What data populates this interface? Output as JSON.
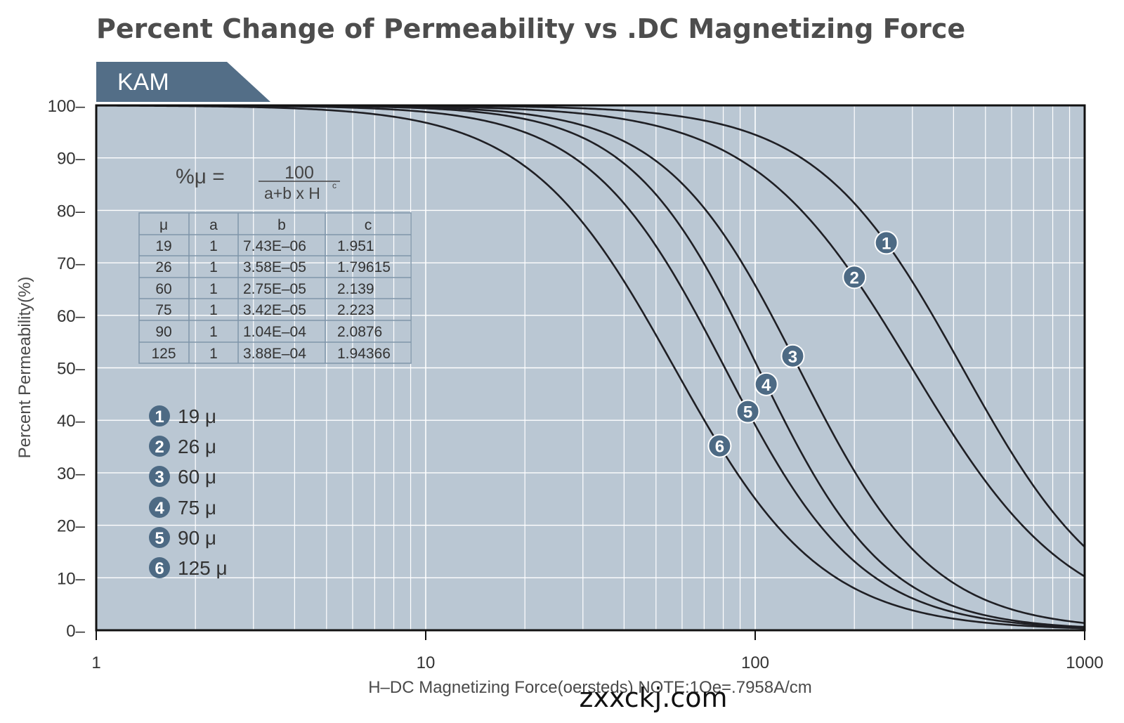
{
  "chart_data": {
    "type": "line",
    "title": "Percent Change of Permeability vs .DC Magnetizing Force",
    "tag": "KAM",
    "xlabel": "H–DC Magnetizing Force(oersteds) NOTE:1Oe=.7958A/cm",
    "ylabel": "Percent Permeability(%)",
    "xscale": "log",
    "xlim": [
      1,
      1000
    ],
    "ylim": [
      0,
      100
    ],
    "xticks": [
      "1",
      "10",
      "100",
      "1000"
    ],
    "yticks": [
      "100–",
      "90–",
      "80–",
      "70–",
      "60–",
      "50–",
      "40–",
      "30–",
      "20–",
      "10–",
      "0–"
    ],
    "formula": {
      "lhs": "%μ =",
      "numerator": "100",
      "denominator": "a+b x H",
      "exponent": "c"
    },
    "table": {
      "headers": [
        "μ",
        "a",
        "b",
        "c"
      ],
      "rows": [
        [
          "19",
          "1",
          "7.43E–06",
          "1.951"
        ],
        [
          "26",
          "1",
          "3.58E–05",
          "1.79615"
        ],
        [
          "60",
          "1",
          "2.75E–05",
          "2.139"
        ],
        [
          "75",
          "1",
          "3.42E–05",
          "2.223"
        ],
        [
          "90",
          "1",
          "1.04E–04",
          "2.0876"
        ],
        [
          "125",
          "1",
          "3.88E–04",
          "1.94366"
        ]
      ]
    },
    "series": [
      {
        "id": "1",
        "name": "19 μ",
        "a": 1,
        "b": 7.43e-06,
        "c": 1.951,
        "marker_x": 250
      },
      {
        "id": "2",
        "name": "26 μ",
        "a": 1,
        "b": 3.58e-05,
        "c": 1.79615,
        "marker_x": 200
      },
      {
        "id": "3",
        "name": "60 μ",
        "a": 1,
        "b": 2.75e-05,
        "c": 2.139,
        "marker_x": 130
      },
      {
        "id": "4",
        "name": "75 μ",
        "a": 1,
        "b": 3.42e-05,
        "c": 2.223,
        "marker_x": 108
      },
      {
        "id": "5",
        "name": "90 μ",
        "a": 1,
        "b": 0.000104,
        "c": 2.0876,
        "marker_x": 95
      },
      {
        "id": "6",
        "name": "125 μ",
        "a": 1,
        "b": 0.000388,
        "c": 1.94366,
        "marker_x": 78
      }
    ],
    "watermark": "zxxckj.com",
    "colors": {
      "plot_bg": "#bac7d3",
      "grid": "#ffffff",
      "curve": "#1f1f24",
      "badge": "#4d6a84",
      "tag_bg": "#536e87",
      "frame": "#111111"
    }
  }
}
